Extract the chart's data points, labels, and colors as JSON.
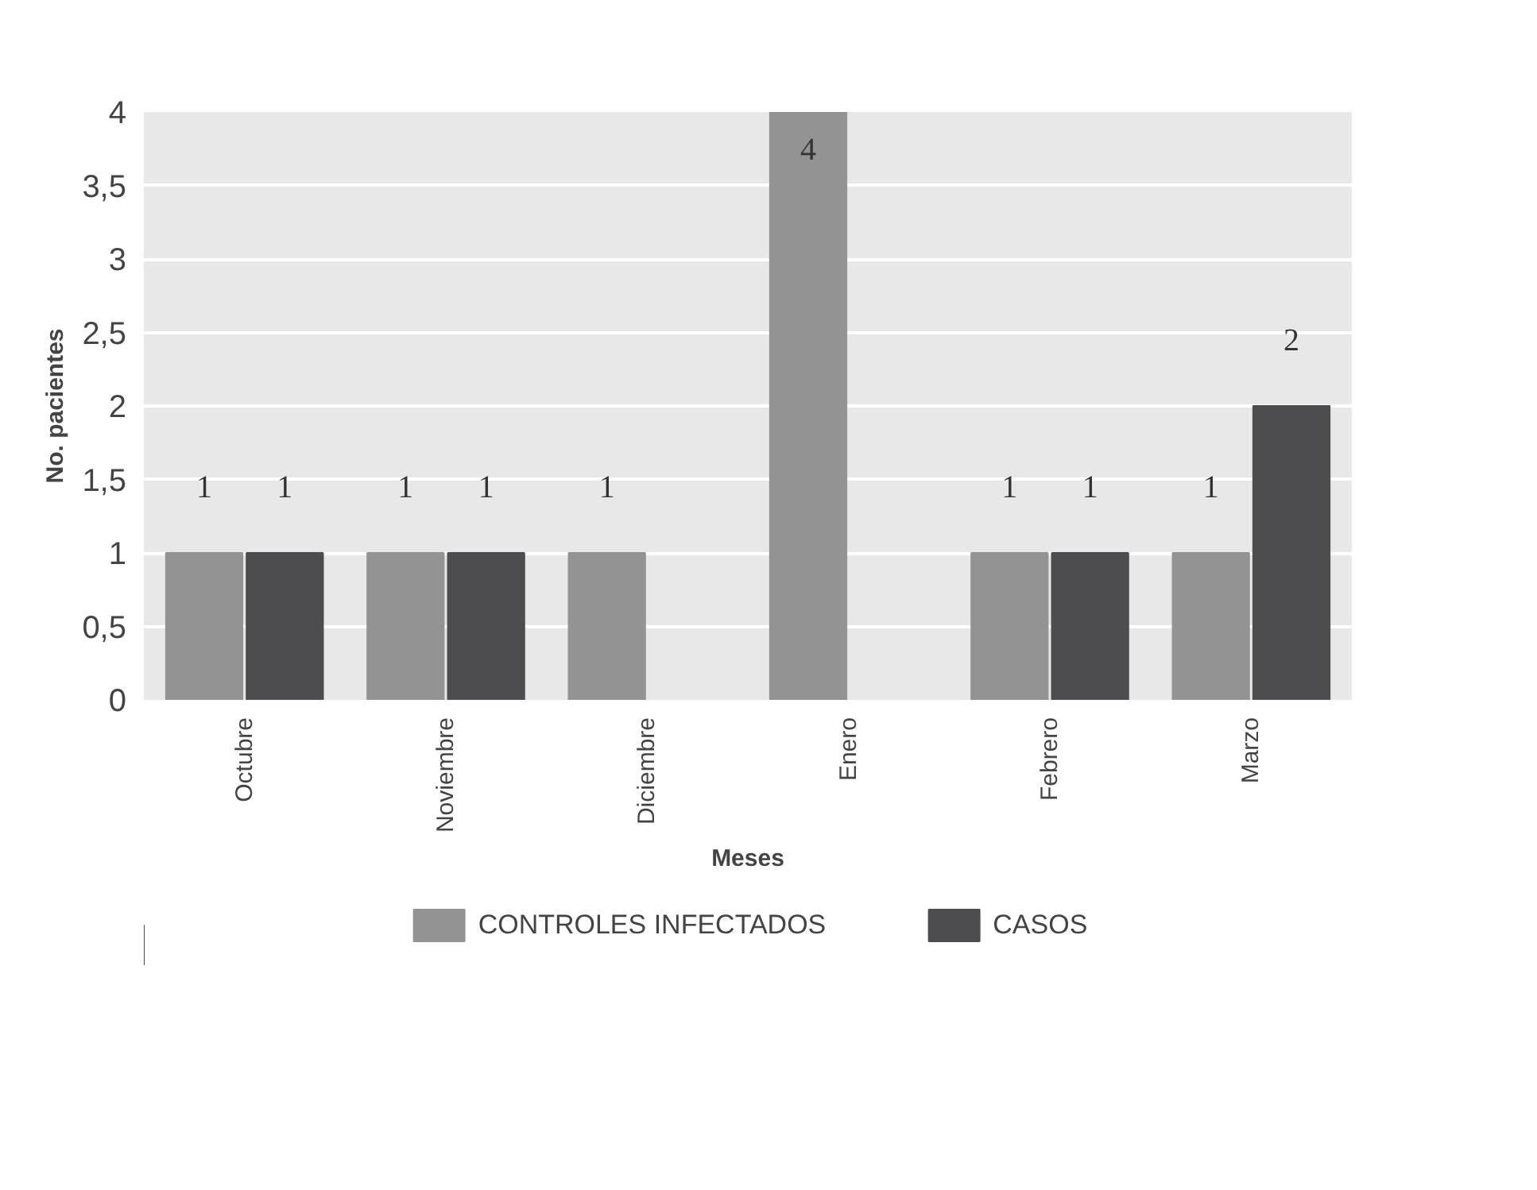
{
  "chart_data": {
    "type": "bar",
    "xlabel": "Meses",
    "ylabel": "No. pacientes",
    "categories": [
      "Octubre",
      "Noviembre",
      "Diciembre",
      "Enero",
      "Febrero",
      "Marzo"
    ],
    "series": [
      {
        "name": "CONTROLES INFECTADOS",
        "color": "#939393",
        "values": [
          1,
          1,
          1,
          4,
          1,
          1
        ]
      },
      {
        "name": "CASOS",
        "color": "#4d4d4f",
        "values": [
          1,
          1,
          null,
          null,
          1,
          2
        ]
      }
    ],
    "ylim": [
      0,
      4
    ],
    "yticks": [
      0,
      {
        "value": 0.5,
        "label": "0,5"
      },
      1,
      {
        "value": 1.5,
        "label": "1,5"
      },
      2,
      {
        "value": 2.5,
        "label": "2,5"
      },
      3,
      {
        "value": 3.5,
        "label": "3,5"
      },
      4
    ],
    "grid": "y",
    "data_labels": true,
    "legend": "bottom"
  }
}
